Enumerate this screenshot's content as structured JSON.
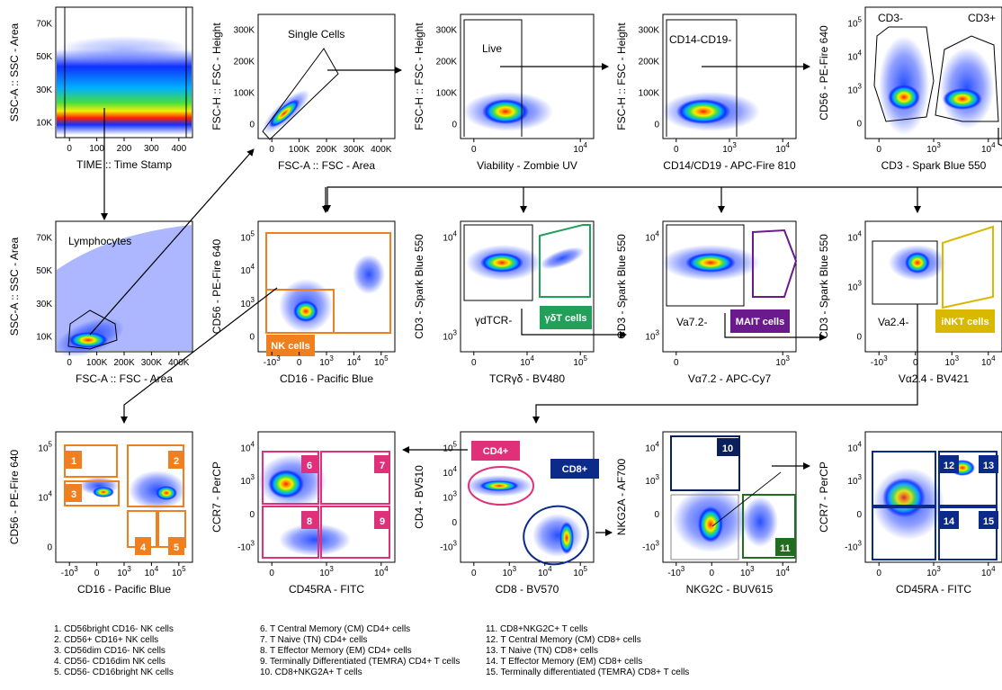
{
  "panels": [
    {
      "id": "time",
      "xlabel": "TIME :: Time Stamp",
      "ylabel": "SSC-A :: SSC - Area",
      "yticks": [
        "70K",
        "50K",
        "30K",
        "10K"
      ],
      "xticks": [
        "0",
        "100",
        "200",
        "300",
        "400"
      ],
      "gate": "",
      "gatelabel2": ""
    },
    {
      "id": "single",
      "xlabel": "FSC-A :: FSC - Area",
      "ylabel": "FSC-H :: FSC - Height",
      "yticks": [
        "300K",
        "200K",
        "100K",
        "0"
      ],
      "xticks": [
        "0",
        "100K",
        "200K",
        "300K",
        "400K"
      ],
      "gate": "Single Cells"
    },
    {
      "id": "live",
      "xlabel": "Viability - Zombie UV",
      "ylabel": "FSC-H :: FSC - Height",
      "yticks": [
        "300K",
        "200K",
        "100K",
        "0"
      ],
      "xticks": [
        "0",
        "10^4"
      ],
      "gate": "Live"
    },
    {
      "id": "cd14",
      "xlabel": "CD14/CD19 - APC-Fire 810",
      "ylabel": "FSC-H :: FSC - Height",
      "yticks": [
        "300K",
        "200K",
        "100K",
        "0"
      ],
      "xticks": [
        "0",
        "10^3",
        "10^4"
      ],
      "gate": "CD14-CD19-"
    },
    {
      "id": "cd3",
      "xlabel": "CD3 - Spark Blue 550",
      "ylabel": "CD56 - PE-Fire 640",
      "yticks": [
        "10^5",
        "10^4",
        "10^3",
        "0"
      ],
      "xticks": [
        "0",
        "10^3",
        "10^4"
      ],
      "gate": "CD3-",
      "gate2": "CD3+"
    },
    {
      "id": "lymph",
      "xlabel": "FSC-A :: FSC - Area",
      "ylabel": "SSC-A :: SSC - Area",
      "yticks": [
        "70K",
        "50K",
        "30K",
        "10K"
      ],
      "xticks": [
        "0",
        "100K",
        "200K",
        "300K",
        "400K"
      ],
      "gate": "Lymphocytes"
    },
    {
      "id": "nk",
      "xlabel": "CD16 - Pacific Blue",
      "ylabel": "CD56 - PE-Fire 640",
      "yticks": [
        "10^5",
        "10^4",
        "10^3",
        "0"
      ],
      "xticks": [
        "-10^3",
        "0",
        "10^3",
        "10^4",
        "10^5"
      ],
      "gate": "NK cells"
    },
    {
      "id": "gd",
      "xlabel": "TCRγδ - BV480",
      "ylabel": "CD3 - Spark Blue 550",
      "yticks": [
        "10^4",
        "10^3"
      ],
      "xticks": [
        "0",
        "10^4",
        "10^5"
      ],
      "gate": "γδT cells",
      "gate2": "γdTCR-"
    },
    {
      "id": "mait",
      "xlabel": "Vα7.2 - APC-Cy7",
      "ylabel": "CD3 - Spark Blue 550",
      "yticks": [
        "10^4",
        "10^3"
      ],
      "xticks": [
        "0",
        "10^3"
      ],
      "gate": "MAIT cells",
      "gate2": "Va7.2-"
    },
    {
      "id": "inkt",
      "xlabel": "Vα2.4 - BV421",
      "ylabel": "CD3 - Spark Blue 550",
      "yticks": [
        "10^4",
        "10^3",
        "0"
      ],
      "xticks": [
        "-10^3",
        "0",
        "10^3",
        "10^4"
      ],
      "gate": "iNKT cells",
      "gate2": "Va2.4-"
    },
    {
      "id": "nksub",
      "xlabel": "CD16 - Pacific Blue",
      "ylabel": "CD56 - PE-Fire 640",
      "yticks": [
        "10^5",
        "10^4",
        "0"
      ],
      "xticks": [
        "-10^3",
        "0",
        "10^3",
        "10^4",
        "10^5"
      ],
      "gates": [
        "1",
        "2",
        "3",
        "4",
        "5"
      ]
    },
    {
      "id": "cd4sub",
      "xlabel": "CD45RA - FITC",
      "ylabel": "CCR7 - PerCP",
      "yticks": [
        "10^4",
        "10^3",
        "0",
        "-10^3"
      ],
      "xticks": [
        "0",
        "10^3",
        "10^4"
      ],
      "gates": [
        "6",
        "7",
        "8",
        "9"
      ]
    },
    {
      "id": "cd4cd8",
      "xlabel": "CD8 - BV570",
      "ylabel": "CD4 - BV510",
      "yticks": [
        "10^5",
        "10^4",
        "10^3",
        "0",
        "-10^3"
      ],
      "xticks": [
        "0",
        "10^3",
        "10^4",
        "10^5"
      ],
      "gate": "CD4+",
      "gate2": "CD8+"
    },
    {
      "id": "nkg",
      "xlabel": "NKG2C - BUV615",
      "ylabel": "NKG2A - AF700",
      "yticks": [
        "10^4",
        "10^3",
        "0",
        "-10^3"
      ],
      "xticks": [
        "-10^3",
        "0",
        "10^3",
        "10^4"
      ],
      "gates": [
        "10",
        "11"
      ]
    },
    {
      "id": "cd8sub",
      "xlabel": "CD45RA - FITC",
      "ylabel": "CCR7 - PerCP",
      "yticks": [
        "10^4",
        "10^3",
        "0",
        "-10^3"
      ],
      "xticks": [
        "0",
        "10^3",
        "10^4"
      ],
      "gates": [
        "12",
        "13",
        "14",
        "15"
      ]
    }
  ],
  "legend": [
    [
      "1. CD56bright CD16- NK cells",
      "2. CD56+ CD16+ NK cells",
      "3. CD56dim CD16- NK cells",
      "4. CD56- CD16dim NK cells",
      "5. CD56- CD16bright NK cells"
    ],
    [
      "6. T Central Memory (CM) CD4+ cells",
      "7. T Naive (TN) CD4+ cells",
      "8. T Effector Memory (EM) CD4+ cells",
      "9. Terminally Differentiated (TEMRA) CD4+ T cells",
      "10. CD8+NKG2A+ T cells"
    ],
    [
      "11. CD8+NKG2C+ T cells",
      "12. T Central Memory (CM) CD8+ cells",
      "13. T Naive (TN) CD8+ cells",
      "14. T Effector Memory (EM) CD8+ cells",
      "15. Terminally differentiated (TEMRA) CD8+ T cells"
    ]
  ],
  "colors": {
    "orange": "#f0801f",
    "green": "#22a05a",
    "purple": "#6a1a8c",
    "yellow": "#d8b800",
    "pink": "#e0307a",
    "navy": "#0b2a8a",
    "darkgreen": "#1f6e1f",
    "darknavy": "#0a1f5c"
  }
}
